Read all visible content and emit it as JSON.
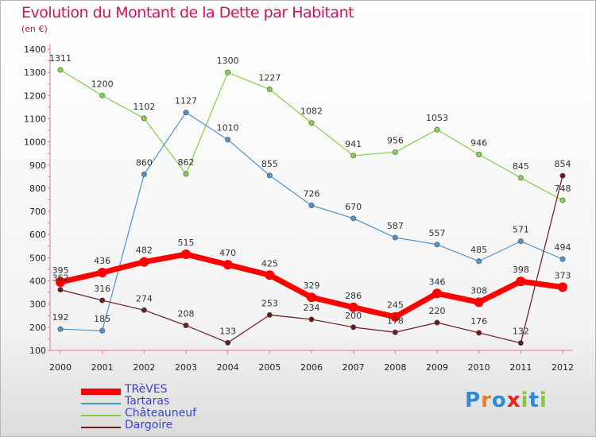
{
  "title": "Evolution du Montant de la Dette par Habitant",
  "unit": "(en €)",
  "logo": {
    "text": "Proxiti",
    "colors": [
      "#2e8bd6",
      "#f07c1a",
      "#2e8bd6",
      "#e0261c",
      "#8cc63f",
      "#2e8bd6",
      "#8cc63f"
    ]
  },
  "chart_data": {
    "type": "line",
    "x": [
      "2000",
      "2001",
      "2002",
      "2003",
      "2004",
      "2005",
      "2006",
      "2007",
      "2008",
      "2009",
      "2010",
      "2011",
      "2012"
    ],
    "ylim": [
      100,
      1400
    ],
    "yticks": [
      100,
      200,
      300,
      400,
      500,
      600,
      700,
      800,
      900,
      1000,
      1100,
      1200,
      1300,
      1400
    ],
    "grid": false,
    "legend_position": "bottom-left",
    "series": [
      {
        "name": "TRèVES",
        "color": "#ff0000",
        "values": [
          395,
          436,
          482,
          515,
          470,
          425,
          329,
          286,
          245,
          346,
          308,
          398,
          373
        ]
      },
      {
        "name": "Tartaras",
        "color": "#4f93cc",
        "values": [
          192,
          185,
          860,
          1127,
          1010,
          855,
          726,
          670,
          587,
          557,
          485,
          571,
          494
        ]
      },
      {
        "name": "Châteauneuf",
        "color": "#85d146",
        "values": [
          1311,
          1200,
          1102,
          862,
          1300,
          1227,
          1082,
          941,
          956,
          1053,
          946,
          845,
          748
        ]
      },
      {
        "name": "Dargoire",
        "color": "#6b1a1f",
        "values": [
          362,
          316,
          274,
          208,
          133,
          253,
          234,
          200,
          178,
          220,
          176,
          132,
          854
        ]
      }
    ]
  }
}
